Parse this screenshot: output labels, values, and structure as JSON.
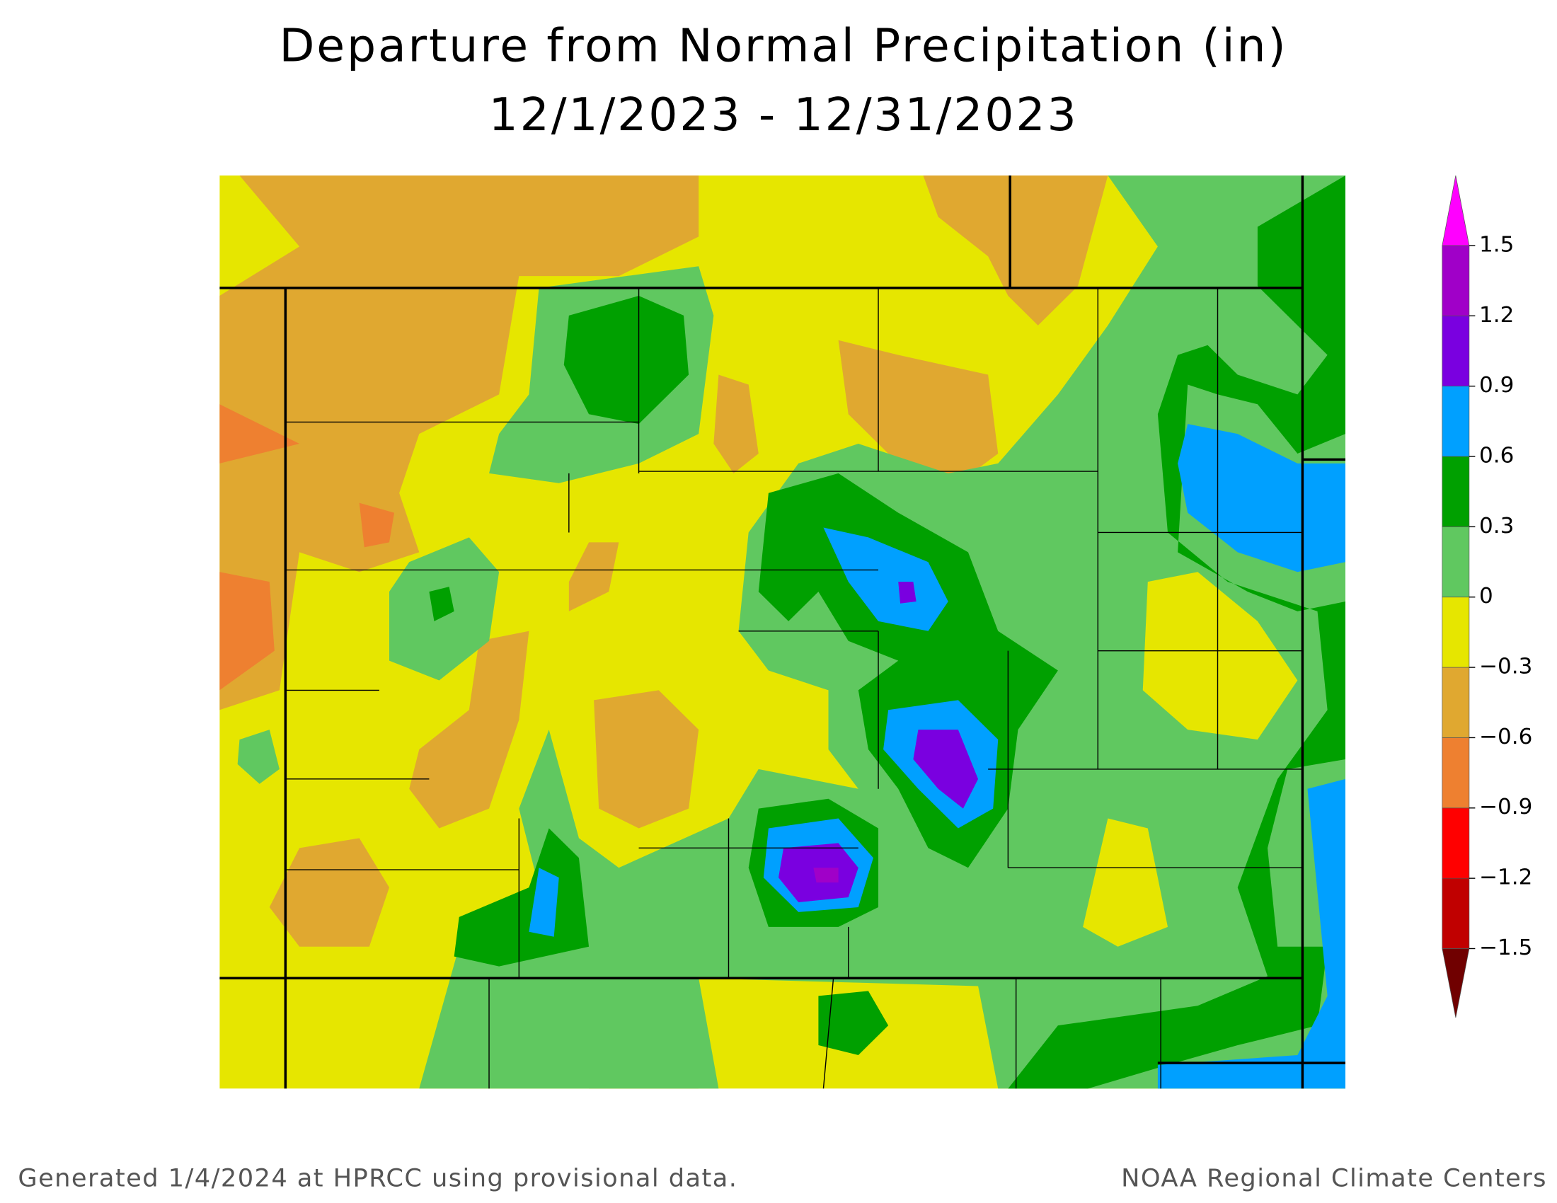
{
  "title": [
    "Departure from Normal Precipitation (in)",
    "12/1/2023 - 12/31/2023"
  ],
  "colorbar": {
    "ticks": [
      {
        "value": -1.5,
        "label": "−1.5"
      },
      {
        "value": -1.2,
        "label": "−1.2"
      },
      {
        "value": -0.9,
        "label": "−0.9"
      },
      {
        "value": -0.6,
        "label": "−0.6"
      },
      {
        "value": -0.3,
        "label": "−0.3"
      },
      0,
      0.3,
      0.6,
      0.9,
      1.2,
      1.5
    ],
    "colors": [
      "#c00000",
      "#ff0000",
      "#ee8030",
      "#e0a830",
      "#e6e600",
      "#60c860",
      "#00a000",
      "#00a0ff",
      "#7a00e0",
      "#a000c8"
    ],
    "under_color": "#700000",
    "over_color": "#ff00ff"
  },
  "footer": {
    "left": "Generated 1/4/2024 at HPRCC using provisional data.",
    "right": "NOAA Regional Climate Centers"
  }
}
